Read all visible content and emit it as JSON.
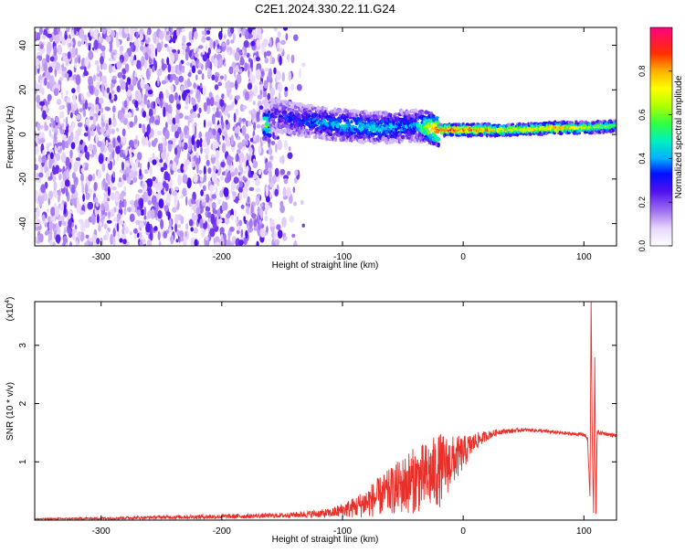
{
  "title": "C2E1.2024.330.22.11.G24",
  "chart_data": [
    {
      "type": "heatmap",
      "title": "C2E1.2024.330.22.11.G24",
      "xlabel": "Height of straight line (km)",
      "ylabel": "Frequency (Hz)",
      "xlim": [
        -355,
        127
      ],
      "ylim": [
        -50,
        48
      ],
      "xticks": [
        -300,
        -200,
        -100,
        0,
        100
      ],
      "yticks": [
        -40,
        -20,
        0,
        20,
        40
      ],
      "grid": false,
      "colorbar": {
        "label": "Normalized spectral amplitude",
        "range": [
          0.0,
          1.0
        ],
        "ticks": [
          0.0,
          0.2,
          0.4,
          0.6,
          0.8
        ],
        "tick_labels": [
          "0.0",
          "0.2",
          "0.4",
          "0.6",
          "0.8"
        ],
        "colors": [
          "#ffffff",
          "#d6b8f4",
          "#8a2be2",
          "#4b00e0",
          "#0000ff",
          "#00c0ff",
          "#00ff80",
          "#80ff00",
          "#ffff00",
          "#ff8000",
          "#ff0000",
          "#ff0080"
        ]
      },
      "features": {
        "noise_region_x": [
          -355,
          -130
        ],
        "signal_ridge": [
          {
            "x": -160,
            "freq": 9,
            "amp": 0.25
          },
          {
            "x": -130,
            "freq": 6,
            "amp": 0.35
          },
          {
            "x": -100,
            "freq": 4,
            "amp": 0.45
          },
          {
            "x": -70,
            "freq": 3,
            "amp": 0.45
          },
          {
            "x": -40,
            "freq": 4,
            "amp": 0.4
          },
          {
            "x": -20,
            "freq": 2,
            "amp": 0.9
          },
          {
            "x": 0,
            "freq": 2,
            "amp": 0.95
          },
          {
            "x": 40,
            "freq": 2,
            "amp": 0.75
          },
          {
            "x": 80,
            "freq": 3,
            "amp": 0.85
          },
          {
            "x": 105,
            "freq": 3,
            "amp": 0.7
          },
          {
            "x": 127,
            "freq": 4,
            "amp": 0.6
          }
        ]
      }
    },
    {
      "type": "line",
      "xlabel": "Height of straight line (km)",
      "ylabel": "SNR (10 * v/v)",
      "y_multiplier": "(x10",
      "y_multiplier_exp": "4",
      "xlim": [
        -355,
        127
      ],
      "ylim": [
        0,
        3.75
      ],
      "xticks": [
        -300,
        -200,
        -100,
        0,
        100
      ],
      "yticks": [
        1,
        2,
        3
      ],
      "grid": false,
      "color": "#e8302a",
      "series": [
        {
          "x": [
            -355,
            -300,
            -250,
            -200,
            -150,
            -110,
            -90,
            -75,
            -60,
            -45,
            -30,
            -20,
            -10,
            0,
            10,
            20,
            30,
            40,
            50,
            60,
            70,
            80,
            90,
            100,
            103,
            105,
            106,
            107,
            108,
            109,
            110,
            111,
            115,
            120,
            127
          ],
          "y": [
            0.02,
            0.03,
            0.05,
            0.06,
            0.08,
            0.12,
            0.22,
            0.35,
            0.5,
            0.65,
            0.75,
            0.85,
            1.0,
            1.15,
            1.35,
            1.45,
            1.52,
            1.53,
            1.55,
            1.54,
            1.52,
            1.5,
            1.48,
            1.47,
            1.4,
            0.4,
            3.7,
            1.2,
            0.1,
            2.8,
            0.15,
            1.5,
            1.5,
            1.47,
            1.45
          ],
          "noise_amp": [
            0.01,
            0.02,
            0.03,
            0.04,
            0.04,
            0.08,
            0.18,
            0.3,
            0.4,
            0.55,
            0.6,
            0.65,
            0.45,
            0.3,
            0.15,
            0.08,
            0.05,
            0.04,
            0.03,
            0.03,
            0.03,
            0.03,
            0.03,
            0.03,
            0.05,
            0.05,
            0.05,
            0.05,
            0.05,
            0.05,
            0.05,
            0.04,
            0.03,
            0.03,
            0.03
          ]
        }
      ]
    }
  ]
}
